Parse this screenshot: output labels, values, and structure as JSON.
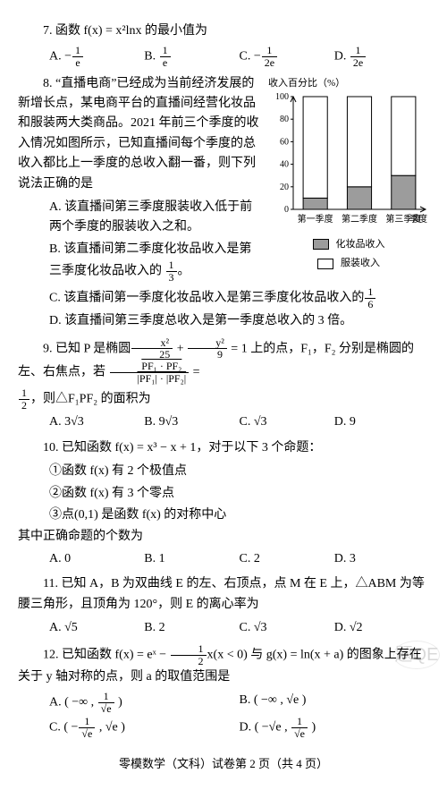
{
  "q7": {
    "stem": "7. 函数 f(x) = x²lnx 的最小值为",
    "opts": {
      "A": "A. −",
      "A_frac": {
        "n": "1",
        "d": "e"
      },
      "B": "B. ",
      "B_frac": {
        "n": "1",
        "d": "e"
      },
      "C": "C. −",
      "C_frac": {
        "n": "1",
        "d": "2e"
      },
      "D": "D. ",
      "D_frac": {
        "n": "1",
        "d": "2e"
      }
    }
  },
  "q8": {
    "stem_a": "8. “直播电商”已经成为当前经济发展的新增长点，某电商平台的直播间经营化妆品和服装两大类商品。2021 年前三个季度的收入情况如图所示，已知直播间每个季度的总收入都比上一季度的总收入翻一番，则下列说法正确的是",
    "optA": "A. 该直播间第三季度服装收入低于前两个季度的服装收入之和。",
    "optB_a": "B. 该直播间第二季度化妆品收入是第三季度化妆品收入的 ",
    "optB_frac": {
      "n": "1",
      "d": "3"
    },
    "optB_b": "。",
    "optC_a": "C. 该直播间第一季度化妆品收入是第三季度化妆品收入的",
    "optC_frac": {
      "n": "1",
      "d": "6"
    },
    "optD": "D. 该直播间第三季度总收入是第一季度总收入的 3 倍。",
    "chart": {
      "y_label": "收入百分比（%）",
      "ymax": 100,
      "ytick_step": 20,
      "categories": [
        "第一季度",
        "第二季度",
        "第三季度"
      ],
      "x_extra": "季度",
      "series1": {
        "name": "化妆品收入",
        "color": "#9c9c9c",
        "values": [
          10,
          20,
          30
        ]
      },
      "series2": {
        "name": "服装收入",
        "color": "#ffffff",
        "values": [
          90,
          80,
          70
        ]
      },
      "axis_color": "#000",
      "bg": "#fff",
      "tick_fontsize": 10,
      "label_fontsize": 11
    }
  },
  "q9": {
    "stem_a": "9. 已知 P 是椭圆",
    "frac1": {
      "n": "x²",
      "d": "25"
    },
    "plus": " + ",
    "frac2": {
      "n": "y²",
      "d": "9"
    },
    "stem_b": " = 1 上的点，F₁，F₂ 分别是椭圆的左、右焦点，若 ",
    "ratio_n": "PF₁ · PF₂",
    "ratio_d": "|PF₁| · |PF₂|",
    "stem_c": " = ",
    "half": {
      "n": "1",
      "d": "2"
    },
    "stem_d": "，则△F₁PF₂ 的面积为",
    "opts": {
      "A": "A. 3√3",
      "B": "B. 9√3",
      "C": "C. √3",
      "D": "D. 9"
    }
  },
  "q10": {
    "stem": "10. 已知函数 f(x) = x³ − x + 1，对于以下 3 个命题：",
    "s1": "①函数 f(x) 有 2 个极值点",
    "s2": "②函数 f(x) 有 3 个零点",
    "s3": "③点(0,1) 是函数 f(x) 的对称中心",
    "ask": "其中正确命题的个数为",
    "opts": {
      "A": "A. 0",
      "B": "B. 1",
      "C": "C. 2",
      "D": "D. 3"
    }
  },
  "q11": {
    "stem": "11. 已知 A，B 为双曲线 E 的左、右顶点，点 M 在 E 上，△ABM 为等腰三角形，且顶角为 120°，则 E 的离心率为",
    "opts": {
      "A": "A. √5",
      "B": "B. 2",
      "C": "C. √3",
      "D": "D. √2"
    }
  },
  "q12": {
    "stem_a": "12. 已知函数 f(x) = eˣ − ",
    "half": {
      "n": "1",
      "d": "2"
    },
    "stem_b": "x(x < 0) 与 g(x) = ln(x + a) 的图象上存在关于 y 轴对称的点，则 a 的取值范围是",
    "A_a": "A. ( −∞ , ",
    "A_frac": {
      "n": "1",
      "d": "√e"
    },
    "A_b": " )",
    "B": "B. ( −∞ , √e )",
    "C_a": "C. ( −",
    "C_frac1": {
      "n": "1",
      "d": "√e"
    },
    "C_b": " , √e )",
    "D_a": "D. ( −√e , ",
    "D_frac": {
      "n": "1",
      "d": "√e"
    },
    "D_b": " )"
  },
  "footer": "零模数学（文科）试卷第 2 页（共 4 页）",
  "watermark": "题QE"
}
